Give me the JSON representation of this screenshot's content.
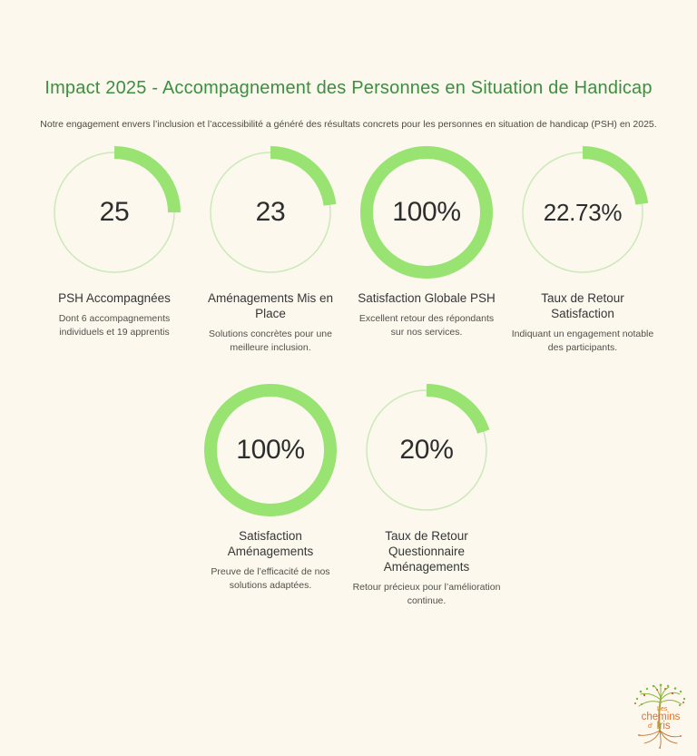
{
  "header": {
    "title": "Impact 2025 - Accompagnement des Personnes en Situation de Handicap",
    "subtitle": "Notre engagement envers l’inclusion et l’accessibilité a généré des résultats concrets pour les personnes en situation de handicap (PSH) en 2025."
  },
  "colors": {
    "background": "#FCF8EE",
    "title_green": "#3C8E40",
    "arc_green": "#98E372",
    "track_green": "#CDE9BA",
    "number_text": "#2D2D2D",
    "label_text": "#363636",
    "desc_text": "#50504A",
    "logo_orange": "#E2722C",
    "logo_leaf_green": "#7CBA45",
    "logo_trunk_green": "#9FAE3F",
    "logo_berry_red": "#D9562B"
  },
  "chart_data": [
    {
      "type": "donut",
      "value_label": "25",
      "percent": 25,
      "title": "PSH Accompagnées",
      "description": "Dont 6 accompagnements individuels et 19 apprentis"
    },
    {
      "type": "donut",
      "value_label": "23",
      "percent": 23,
      "title": "Aménagements Mis en Place",
      "description": "Solutions concrètes pour une meilleure inclusion."
    },
    {
      "type": "donut",
      "value_label": "100%",
      "percent": 100,
      "title": "Satisfaction Globale PSH",
      "description": "Excellent retour des répondants sur nos services."
    },
    {
      "type": "donut",
      "value_label": "22.73%",
      "percent": 22.73,
      "title": "Taux de Retour Satisfaction",
      "description": "Indiquant un engagement notable des participants."
    },
    {
      "type": "donut",
      "value_label": "100%",
      "percent": 100,
      "title": "Satisfaction Aménagements",
      "description": "Preuve de l’efficacité de nos solutions adaptées."
    },
    {
      "type": "donut",
      "value_label": "20%",
      "percent": 20,
      "title": "Taux de Retour Questionnaire Aménagements",
      "description": "Retour précieux pour l’amélioration continue."
    }
  ],
  "logo": {
    "word1": "Les",
    "word2": "chemins",
    "word3": "d’",
    "word4": "Iris"
  }
}
